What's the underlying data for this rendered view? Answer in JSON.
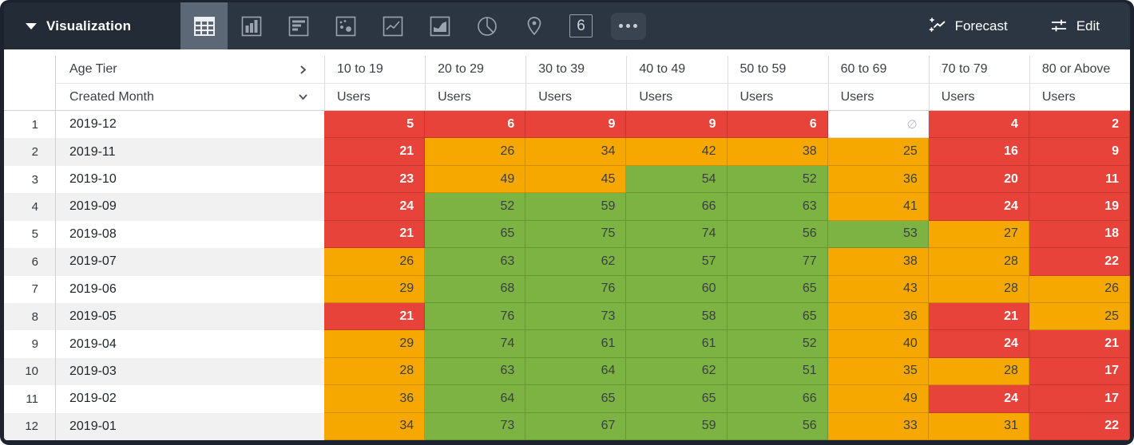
{
  "colors": {
    "red": "#e8433a",
    "orange": "#f7a800",
    "green": "#7cb342",
    "bar_bg": "#2c3542",
    "bar_left_bg": "#232b37",
    "selected_icon_bg": "#5d6877",
    "frame": "#1d232e"
  },
  "topbar": {
    "title": "Visualization",
    "forecast_label": "Forecast",
    "edit_label": "Edit",
    "single_value_glyph": "6",
    "icon_names": [
      "table-chart-icon",
      "column-chart-icon",
      "bar-chart-icon",
      "scatter-chart-icon",
      "line-chart-icon",
      "area-chart-icon",
      "pie-chart-icon",
      "map-pin-icon",
      "single-value-icon",
      "more-options-icon"
    ],
    "selected_icon": "table-chart-icon"
  },
  "table": {
    "pivot_label": "Age Tier",
    "dimension_label": "Created Month",
    "measure_label": "Users",
    "null_glyph": "∅",
    "age_tiers": [
      "10 to 19",
      "20 to 29",
      "30 to 39",
      "40 to 49",
      "50 to 59",
      "60 to 69",
      "70 to 79",
      "80 or Above"
    ],
    "rows": [
      {
        "index": "1",
        "month": "2019-12",
        "values": [
          "5",
          "6",
          "9",
          "9",
          "6",
          "∅",
          "4",
          "2"
        ],
        "styles": [
          "red",
          "red",
          "red",
          "red",
          "red",
          "null",
          "red",
          "red"
        ]
      },
      {
        "index": "2",
        "month": "2019-11",
        "values": [
          "21",
          "26",
          "34",
          "42",
          "38",
          "25",
          "16",
          "9"
        ],
        "styles": [
          "red",
          "orange",
          "orange",
          "orange",
          "orange",
          "orange",
          "red",
          "red"
        ]
      },
      {
        "index": "3",
        "month": "2019-10",
        "values": [
          "23",
          "49",
          "45",
          "54",
          "52",
          "36",
          "20",
          "11"
        ],
        "styles": [
          "red",
          "orange",
          "orange",
          "green",
          "green",
          "orange",
          "red",
          "red"
        ]
      },
      {
        "index": "4",
        "month": "2019-09",
        "values": [
          "24",
          "52",
          "59",
          "66",
          "63",
          "41",
          "24",
          "19"
        ],
        "styles": [
          "red",
          "green",
          "green",
          "green",
          "green",
          "orange",
          "red",
          "red"
        ]
      },
      {
        "index": "5",
        "month": "2019-08",
        "values": [
          "21",
          "65",
          "75",
          "74",
          "56",
          "53",
          "27",
          "18"
        ],
        "styles": [
          "red",
          "green",
          "green",
          "green",
          "green",
          "green",
          "orange",
          "red"
        ]
      },
      {
        "index": "6",
        "month": "2019-07",
        "values": [
          "26",
          "63",
          "62",
          "57",
          "77",
          "38",
          "28",
          "22"
        ],
        "styles": [
          "orange",
          "green",
          "green",
          "green",
          "green",
          "orange",
          "orange",
          "red"
        ]
      },
      {
        "index": "7",
        "month": "2019-06",
        "values": [
          "29",
          "68",
          "76",
          "60",
          "65",
          "43",
          "28",
          "26"
        ],
        "styles": [
          "orange",
          "green",
          "green",
          "green",
          "green",
          "orange",
          "orange",
          "orange"
        ]
      },
      {
        "index": "8",
        "month": "2019-05",
        "values": [
          "21",
          "76",
          "73",
          "58",
          "65",
          "36",
          "21",
          "25"
        ],
        "styles": [
          "red",
          "green",
          "green",
          "green",
          "green",
          "orange",
          "red",
          "orange"
        ]
      },
      {
        "index": "9",
        "month": "2019-04",
        "values": [
          "29",
          "74",
          "61",
          "61",
          "52",
          "40",
          "24",
          "21"
        ],
        "styles": [
          "orange",
          "green",
          "green",
          "green",
          "green",
          "orange",
          "red",
          "red"
        ]
      },
      {
        "index": "10",
        "month": "2019-03",
        "values": [
          "28",
          "63",
          "64",
          "62",
          "51",
          "35",
          "28",
          "17"
        ],
        "styles": [
          "orange",
          "green",
          "green",
          "green",
          "green",
          "orange",
          "orange",
          "red"
        ]
      },
      {
        "index": "11",
        "month": "2019-02",
        "values": [
          "36",
          "64",
          "65",
          "65",
          "66",
          "49",
          "24",
          "17"
        ],
        "styles": [
          "orange",
          "green",
          "green",
          "green",
          "green",
          "orange",
          "red",
          "red"
        ]
      },
      {
        "index": "12",
        "month": "2019-01",
        "values": [
          "34",
          "73",
          "67",
          "59",
          "56",
          "33",
          "31",
          "22"
        ],
        "styles": [
          "orange",
          "green",
          "green",
          "green",
          "green",
          "orange",
          "orange",
          "red"
        ]
      }
    ]
  }
}
